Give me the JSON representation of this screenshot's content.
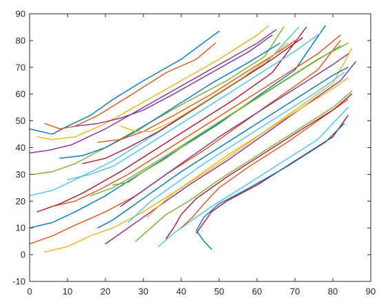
{
  "chart_data": {
    "type": "line",
    "title": "",
    "xlabel": "",
    "ylabel": "",
    "xlim": [
      0,
      90
    ],
    "ylim": [
      -10,
      90
    ],
    "x_ticks": [
      0,
      10,
      20,
      30,
      40,
      50,
      60,
      70,
      80,
      90
    ],
    "y_ticks": [
      -10,
      0,
      10,
      20,
      30,
      40,
      50,
      60,
      70,
      80,
      90
    ],
    "grid": false,
    "legend": "none",
    "description_of_series_shape": "",
    "palette": [
      "#0072BD",
      "#D95319",
      "#EDB120",
      "#7E2F8E",
      "#77AC30",
      "#4DBEEE",
      "#A2142F"
    ],
    "series": [
      {
        "values": [
          [
            0,
            47
          ],
          [
            3,
            46
          ],
          [
            6,
            45
          ],
          [
            10,
            48
          ],
          [
            16,
            52
          ],
          [
            22,
            58
          ],
          [
            30,
            65
          ],
          [
            40,
            73
          ],
          [
            50,
            83.5
          ]
        ]
      },
      {
        "values": [
          [
            4,
            49
          ],
          [
            8,
            47
          ],
          [
            12,
            48
          ],
          [
            18,
            52
          ],
          [
            26,
            59
          ],
          [
            36,
            68
          ],
          [
            44,
            73
          ],
          [
            49,
            79
          ]
        ]
      },
      {
        "values": [
          [
            2,
            44
          ],
          [
            6,
            43
          ],
          [
            12,
            44
          ],
          [
            20,
            49
          ],
          [
            30,
            57
          ],
          [
            40,
            65
          ],
          [
            50,
            73
          ],
          [
            60,
            82
          ],
          [
            63,
            85.5
          ]
        ]
      },
      {
        "values": [
          [
            0,
            38
          ],
          [
            5,
            39
          ],
          [
            11,
            41
          ],
          [
            20,
            47
          ],
          [
            30,
            55
          ],
          [
            40,
            63
          ],
          [
            50,
            71
          ],
          [
            60,
            79
          ],
          [
            65,
            84
          ]
        ]
      },
      {
        "values": [
          [
            1,
            30
          ],
          [
            6,
            31
          ],
          [
            12,
            34
          ],
          [
            20,
            40
          ],
          [
            30,
            48
          ],
          [
            40,
            56
          ],
          [
            52,
            65
          ],
          [
            62,
            74
          ],
          [
            67,
            85
          ]
        ]
      },
      {
        "values": [
          [
            0,
            22
          ],
          [
            6,
            24
          ],
          [
            12,
            28
          ],
          [
            22,
            35
          ],
          [
            32,
            44
          ],
          [
            42,
            53
          ],
          [
            52,
            62
          ],
          [
            62,
            71
          ],
          [
            71,
            85
          ]
        ]
      },
      {
        "values": [
          [
            2,
            16
          ],
          [
            8,
            19
          ],
          [
            14,
            23
          ],
          [
            24,
            31
          ],
          [
            34,
            40
          ],
          [
            44,
            49
          ],
          [
            54,
            58
          ],
          [
            64,
            68
          ],
          [
            73,
            85
          ]
        ]
      },
      {
        "values": [
          [
            0,
            10
          ],
          [
            6,
            12
          ],
          [
            12,
            16
          ],
          [
            20,
            22
          ],
          [
            30,
            31
          ],
          [
            40,
            40
          ],
          [
            50,
            49
          ],
          [
            60,
            59
          ],
          [
            70,
            69
          ],
          [
            78,
            85.5
          ]
        ]
      },
      {
        "values": [
          [
            0,
            4
          ],
          [
            6,
            7
          ],
          [
            12,
            11
          ],
          [
            20,
            16
          ],
          [
            28,
            22
          ],
          [
            36,
            30
          ],
          [
            46,
            39
          ],
          [
            56,
            49
          ],
          [
            66,
            59
          ],
          [
            76,
            69
          ],
          [
            82,
            80
          ]
        ]
      },
      {
        "values": [
          [
            4,
            1
          ],
          [
            10,
            3
          ],
          [
            16,
            7
          ],
          [
            22,
            10
          ],
          [
            30,
            16
          ],
          [
            40,
            25
          ],
          [
            50,
            34
          ],
          [
            60,
            44
          ],
          [
            70,
            54
          ],
          [
            80,
            64
          ],
          [
            85,
            77
          ]
        ]
      },
      {
        "values": [
          [
            20,
            4
          ],
          [
            24,
            8
          ],
          [
            28,
            12
          ],
          [
            34,
            18
          ],
          [
            42,
            26
          ],
          [
            52,
            35
          ],
          [
            62,
            45
          ],
          [
            72,
            55
          ],
          [
            82,
            65
          ],
          [
            86,
            72
          ]
        ]
      },
      {
        "values": [
          [
            28,
            5
          ],
          [
            32,
            10
          ],
          [
            36,
            15
          ],
          [
            42,
            20
          ],
          [
            50,
            28
          ],
          [
            60,
            37
          ],
          [
            70,
            46
          ],
          [
            80,
            55
          ],
          [
            85,
            61
          ]
        ]
      },
      {
        "values": [
          [
            34,
            3
          ],
          [
            38,
            8
          ],
          [
            42,
            12
          ],
          [
            48,
            18
          ],
          [
            56,
            25
          ],
          [
            66,
            34
          ],
          [
            76,
            43
          ],
          [
            84,
            55
          ]
        ]
      },
      {
        "values": [
          [
            44,
            8
          ],
          [
            46,
            12
          ],
          [
            48,
            16
          ],
          [
            52,
            20
          ],
          [
            60,
            26
          ],
          [
            70,
            35
          ],
          [
            80,
            44
          ],
          [
            84,
            52
          ]
        ]
      },
      {
        "values": [
          [
            48,
            2
          ],
          [
            46,
            5
          ],
          [
            44,
            9
          ],
          [
            46,
            14
          ],
          [
            50,
            19
          ],
          [
            58,
            25
          ],
          [
            68,
            33
          ],
          [
            78,
            42
          ],
          [
            83,
            49
          ]
        ]
      },
      {
        "values": [
          [
            40,
            10
          ],
          [
            43,
            14
          ],
          [
            46,
            19
          ],
          [
            50,
            25
          ],
          [
            58,
            33
          ],
          [
            68,
            42
          ],
          [
            78,
            52
          ],
          [
            84,
            58
          ]
        ]
      },
      {
        "values": [
          [
            31,
            14
          ],
          [
            34,
            18
          ],
          [
            38,
            23
          ],
          [
            44,
            29
          ],
          [
            52,
            37
          ],
          [
            62,
            46
          ],
          [
            72,
            55
          ],
          [
            80,
            62
          ],
          [
            84,
            66
          ]
        ]
      },
      {
        "values": [
          [
            24,
            18
          ],
          [
            28,
            22
          ],
          [
            34,
            28
          ],
          [
            40,
            34
          ],
          [
            50,
            44
          ],
          [
            60,
            53
          ],
          [
            70,
            62
          ],
          [
            80,
            71
          ],
          [
            84,
            75
          ]
        ]
      },
      {
        "values": [
          [
            16,
            22
          ],
          [
            22,
            25
          ],
          [
            28,
            30
          ],
          [
            36,
            37
          ],
          [
            46,
            46
          ],
          [
            56,
            55
          ],
          [
            66,
            64
          ],
          [
            76,
            73
          ],
          [
            84,
            79
          ]
        ]
      },
      {
        "values": [
          [
            10,
            28
          ],
          [
            16,
            30
          ],
          [
            22,
            33
          ],
          [
            30,
            40
          ],
          [
            40,
            49
          ],
          [
            50,
            58
          ],
          [
            60,
            67
          ],
          [
            70,
            76
          ],
          [
            77,
            83
          ]
        ]
      },
      {
        "values": [
          [
            14,
            34
          ],
          [
            20,
            36
          ],
          [
            26,
            40
          ],
          [
            34,
            46
          ],
          [
            44,
            55
          ],
          [
            54,
            64
          ],
          [
            64,
            73
          ],
          [
            72,
            81
          ]
        ]
      },
      {
        "values": [
          [
            8,
            36
          ],
          [
            14,
            37
          ],
          [
            20,
            40
          ],
          [
            28,
            46
          ],
          [
            38,
            55
          ],
          [
            48,
            64
          ],
          [
            58,
            72
          ],
          [
            66,
            79
          ]
        ]
      },
      {
        "values": [
          [
            18,
            42
          ],
          [
            24,
            43
          ],
          [
            30,
            46
          ],
          [
            38,
            52
          ],
          [
            48,
            60
          ],
          [
            58,
            69
          ],
          [
            66,
            76
          ],
          [
            70,
            80
          ]
        ]
      },
      {
        "values": [
          [
            24,
            48
          ],
          [
            28,
            46
          ],
          [
            32,
            46
          ],
          [
            38,
            50
          ],
          [
            46,
            57
          ],
          [
            56,
            66
          ],
          [
            64,
            74
          ],
          [
            68,
            79
          ]
        ]
      },
      {
        "values": [
          [
            12,
            48
          ],
          [
            18,
            49
          ],
          [
            24,
            51
          ],
          [
            30,
            54
          ],
          [
            38,
            60
          ],
          [
            48,
            68
          ],
          [
            58,
            76
          ],
          [
            64,
            82
          ]
        ]
      },
      {
        "values": [
          [
            22,
            26
          ],
          [
            26,
            27
          ],
          [
            30,
            31
          ],
          [
            36,
            36
          ],
          [
            44,
            44
          ],
          [
            54,
            53
          ],
          [
            64,
            62
          ],
          [
            74,
            71
          ],
          [
            82,
            78
          ]
        ]
      },
      {
        "values": [
          [
            26,
            12
          ],
          [
            29,
            16
          ],
          [
            32,
            20
          ],
          [
            38,
            26
          ],
          [
            46,
            34
          ],
          [
            56,
            43
          ],
          [
            66,
            52
          ],
          [
            76,
            61
          ],
          [
            83,
            68
          ]
        ]
      },
      {
        "values": [
          [
            36,
            6
          ],
          [
            38,
            10
          ],
          [
            40,
            15
          ],
          [
            44,
            21
          ],
          [
            52,
            29
          ],
          [
            62,
            38
          ],
          [
            72,
            47
          ],
          [
            80,
            54
          ],
          [
            85,
            60
          ]
        ]
      },
      {
        "values": [
          [
            18,
            10
          ],
          [
            22,
            13
          ],
          [
            26,
            17
          ],
          [
            32,
            23
          ],
          [
            40,
            31
          ],
          [
            50,
            40
          ],
          [
            60,
            49
          ],
          [
            70,
            58
          ],
          [
            80,
            67
          ],
          [
            84,
            70
          ]
        ]
      },
      {
        "values": [
          [
            6,
            18
          ],
          [
            12,
            20
          ],
          [
            18,
            24
          ],
          [
            26,
            30
          ],
          [
            36,
            39
          ],
          [
            46,
            48
          ],
          [
            56,
            57
          ],
          [
            66,
            66
          ],
          [
            76,
            75
          ],
          [
            82,
            82
          ]
        ]
      }
    ]
  }
}
